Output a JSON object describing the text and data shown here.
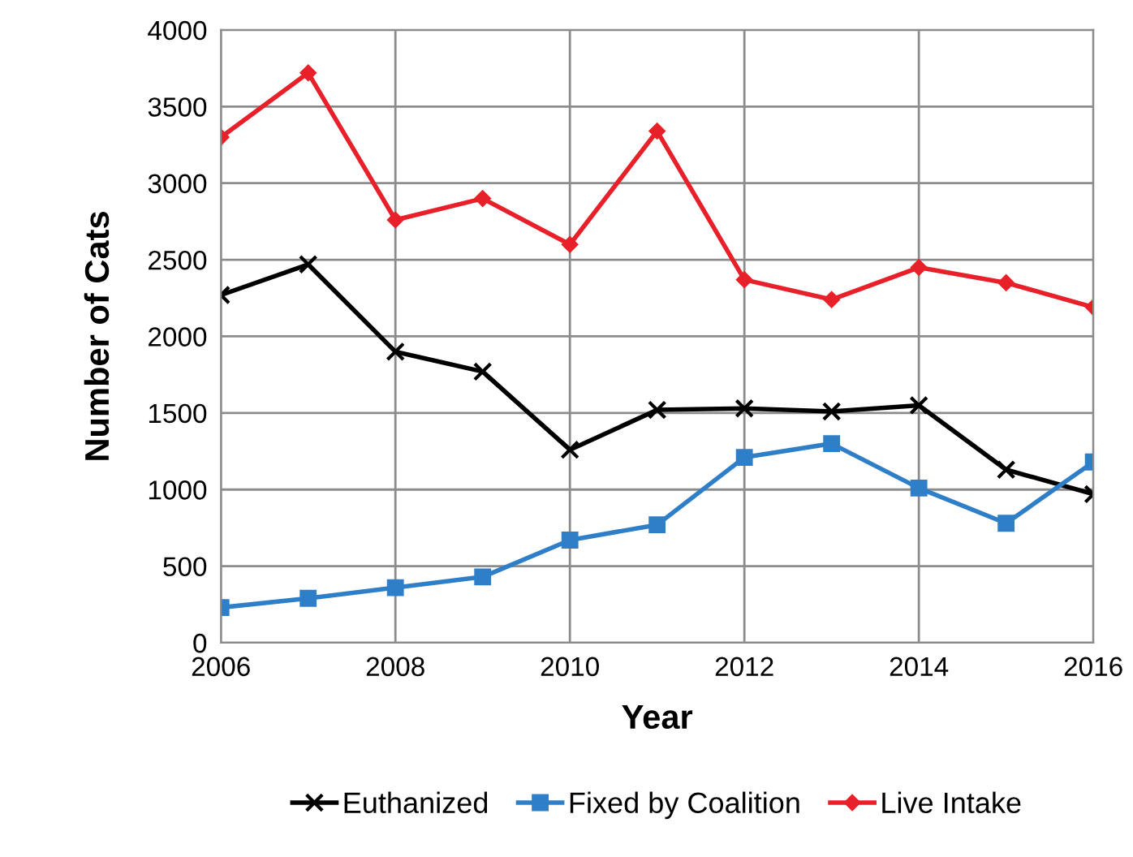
{
  "chart_data": {
    "type": "line",
    "xlabel": "Year",
    "ylabel": "Number of Cats",
    "x": [
      2006,
      2007,
      2008,
      2009,
      2010,
      2011,
      2012,
      2013,
      2014,
      2015,
      2016
    ],
    "series": [
      {
        "name": "Euthanized",
        "color": "#000000",
        "marker": "cross",
        "values": [
          2270,
          2470,
          1900,
          1770,
          1260,
          1520,
          1530,
          1510,
          1550,
          1130,
          970
        ]
      },
      {
        "name": "Fixed by Coalition",
        "color": "#2e7fc8",
        "marker": "square",
        "values": [
          230,
          290,
          360,
          430,
          670,
          770,
          1210,
          1300,
          1010,
          780,
          1180
        ]
      },
      {
        "name": "Live Intake",
        "color": "#e8202a",
        "marker": "diamond",
        "values": [
          3300,
          3720,
          2760,
          2900,
          2600,
          3340,
          2370,
          2240,
          2450,
          2350,
          2190
        ]
      }
    ],
    "xlim": [
      2006,
      2016
    ],
    "xticks": [
      2006,
      2008,
      2010,
      2012,
      2014,
      2016
    ],
    "ylim": [
      0,
      4000
    ],
    "yticks": [
      0,
      500,
      1000,
      1500,
      2000,
      2500,
      3000,
      3500,
      4000
    ],
    "grid": true,
    "legend": "bottom",
    "line_style": "solid"
  }
}
